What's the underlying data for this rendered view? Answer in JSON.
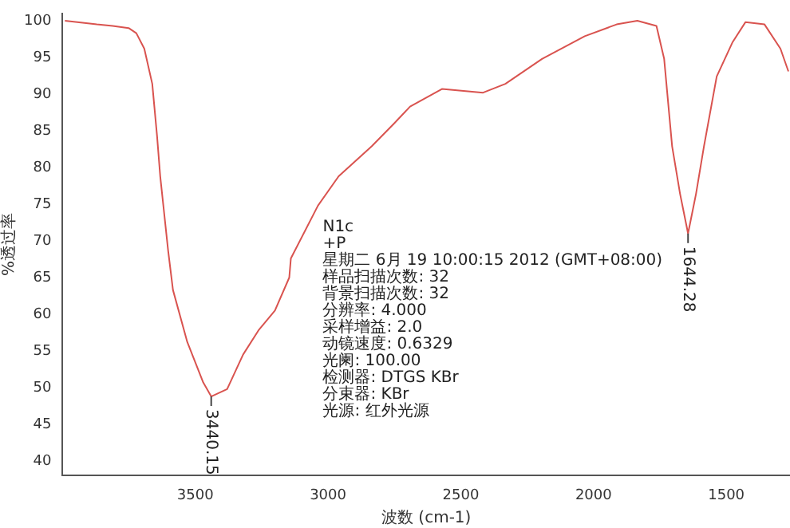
{
  "chart_data": {
    "type": "line",
    "xlabel": "波数 (cm-1)",
    "ylabel": "%透过率",
    "x": [
      3991,
      3871,
      3811,
      3751,
      3722,
      3692,
      3662,
      3644,
      3632,
      3602,
      3584,
      3530,
      3470,
      3440,
      3380,
      3320,
      3260,
      3200,
      3146,
      3140,
      3038,
      2960,
      2835,
      2751,
      2691,
      2571,
      2416,
      2332,
      2194,
      2033,
      1913,
      1835,
      1763,
      1734,
      1704,
      1674,
      1644,
      1614,
      1584,
      1536,
      1476,
      1428,
      1356,
      1296,
      1266
    ],
    "series": [
      {
        "color": "#d9534f",
        "values": [
          100,
          99.5,
          99.3,
          99,
          98.3,
          96.2,
          91.4,
          84.3,
          78.8,
          68.6,
          63.3,
          56.2,
          50.7,
          48.8,
          49.8,
          54.5,
          57.9,
          60.5,
          65,
          67.6,
          74.8,
          78.8,
          82.9,
          86,
          88.3,
          90.7,
          90.2,
          91.4,
          94.8,
          97.9,
          99.5,
          100,
          99.3,
          94.8,
          82.9,
          76.4,
          71,
          76.4,
          82.9,
          92.4,
          97.1,
          99.8,
          99.5,
          96.2,
          93.1
        ]
      }
    ],
    "xlim": [
      4000,
      1260
    ],
    "xticks": [
      3500,
      3000,
      2500,
      2000,
      1500
    ],
    "ylim": [
      38,
      101
    ],
    "yticks": [
      40,
      45,
      50,
      55,
      60,
      65,
      70,
      75,
      80,
      85,
      90,
      95,
      100
    ],
    "grid": false,
    "legend": false,
    "marker": "none",
    "line_style": "solid",
    "annotations": [
      {
        "text": "3440.15",
        "x": 3440,
        "y": 48.8
      },
      {
        "text": "1644.28",
        "x": 1644,
        "y": 71
      },
      "N1c",
      "+P",
      "星期二 6月 19 10:00:15 2012 (GMT+08:00)",
      "样品扫描次数: 32",
      "背景扫描次数: 32",
      "分辨率: 4.000",
      "采样增益: 2.0",
      "动镜速度: 0.6329",
      "光阑: 100.00",
      "检测器: DTGS KBr",
      "分束器: KBr",
      "光源: 红外光源"
    ]
  }
}
